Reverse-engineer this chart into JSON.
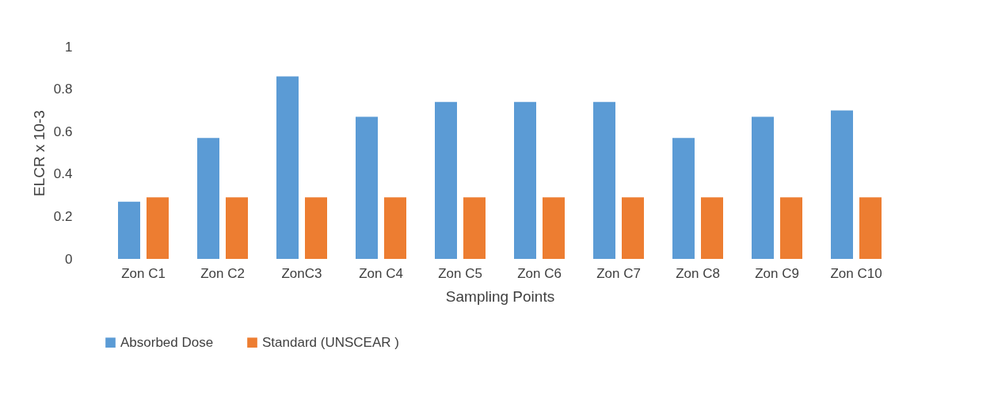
{
  "chart_data": {
    "type": "bar",
    "xlabel": "Sampling Points",
    "ylabel": "ELCR x 10-3",
    "categories": [
      "Zon C1",
      "Zon C2",
      "ZonC3",
      "Zon C4",
      "Zon C5",
      "Zon C6",
      "Zon C7",
      "Zon C8",
      "Zon C9",
      "Zon C10"
    ],
    "series": [
      {
        "name": "Absorbed Dose",
        "color": "#5b9bd5",
        "values": [
          0.27,
          0.57,
          0.86,
          0.67,
          0.74,
          0.74,
          0.74,
          0.57,
          0.67,
          0.7
        ]
      },
      {
        "name": "Standard (UNSCEAR )",
        "color": "#ed7d31",
        "values": [
          0.29,
          0.29,
          0.29,
          0.29,
          0.29,
          0.29,
          0.29,
          0.29,
          0.29,
          0.29
        ]
      }
    ],
    "ylim": [
      0,
      1
    ],
    "yticks": [
      0,
      0.2,
      0.4,
      0.6,
      0.8,
      1
    ],
    "grid": false,
    "legend": "bottom"
  }
}
